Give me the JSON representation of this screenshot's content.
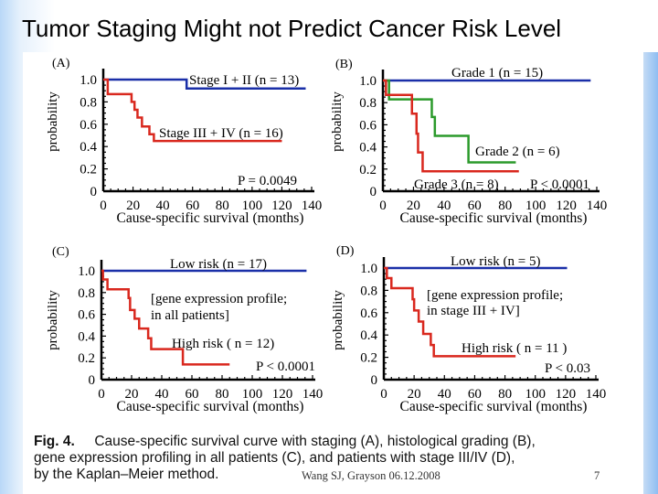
{
  "slide": {
    "title": "Tumor Staging Might not Predict Cancer Risk Level",
    "caption": {
      "label": "Fig. 4.",
      "line1": "Cause-specific survival curve with staging (A), histological grading (B),",
      "line2": "gene expression profiling in all patients (C), and patients with stage III/IV (D),",
      "line3": "by the Kaplan–Meier method."
    },
    "footer": "Wang SJ, Grayson 06.12.2008",
    "page_number": "7"
  },
  "colors": {
    "blue": "#1a2fa8",
    "red": "#d9281e",
    "green": "#2b9a2b",
    "axis": "#000000"
  },
  "chart_data": [
    {
      "type": "line",
      "step": true,
      "panel": "(A)",
      "xlabel": "Cause-specific survival (months)",
      "ylabel": "probability",
      "xlim": [
        0,
        140
      ],
      "ylim": [
        0,
        1.0
      ],
      "xticks": [
        "0",
        "20",
        "40",
        "60",
        "80",
        "100",
        "120",
        "140"
      ],
      "yticks": [
        "0",
        "0.2",
        "0.4",
        "0.6",
        "0.8",
        "1.0"
      ],
      "series": [
        {
          "name": "Stage I + II (n = 13)",
          "color": "blue",
          "x": [
            0,
            56,
            136
          ],
          "y": [
            1.0,
            0.92,
            0.92
          ]
        },
        {
          "name": "Stage III + IV (n = 16)",
          "color": "red",
          "x": [
            0,
            3,
            19,
            21,
            23,
            26,
            31,
            34,
            120
          ],
          "y": [
            1.0,
            0.87,
            0.8,
            0.73,
            0.66,
            0.58,
            0.51,
            0.45,
            0.45
          ]
        }
      ],
      "annotations": [
        "P = 0.0049"
      ]
    },
    {
      "type": "line",
      "step": true,
      "panel": "(B)",
      "xlabel": "Cause-specific survival (months)",
      "ylabel": "probability",
      "xlim": [
        0,
        140
      ],
      "ylim": [
        0,
        1.0
      ],
      "xticks": [
        "0",
        "20",
        "40",
        "60",
        "80",
        "100",
        "120",
        "140"
      ],
      "yticks": [
        "0",
        "0.2",
        "0.4",
        "0.6",
        "0.8",
        "1.0"
      ],
      "series": [
        {
          "name": "Grade 1 (n = 15)",
          "color": "blue",
          "x": [
            0,
            136
          ],
          "y": [
            1.0,
            1.0
          ]
        },
        {
          "name": "Grade 2 (n = 6)",
          "color": "green",
          "x": [
            0,
            4,
            32,
            34,
            56,
            87
          ],
          "y": [
            1.0,
            0.83,
            0.67,
            0.5,
            0.26,
            0.26
          ]
        },
        {
          "name": "Grade 3 (n = 8)",
          "color": "red",
          "x": [
            0,
            2,
            19,
            22,
            23,
            26,
            89
          ],
          "y": [
            1.0,
            0.87,
            0.7,
            0.52,
            0.35,
            0.18,
            0.18
          ]
        }
      ],
      "annotations": [
        "P < 0.0001"
      ]
    },
    {
      "type": "line",
      "step": true,
      "panel": "(C)",
      "xlabel": "Cause-specific survival (months)",
      "ylabel": "probability",
      "xlim": [
        0,
        140
      ],
      "ylim": [
        0,
        1.0
      ],
      "xticks": [
        "0",
        "20",
        "40",
        "60",
        "80",
        "100",
        "120",
        "140"
      ],
      "yticks": [
        "0",
        "0.2",
        "0.4",
        "0.6",
        "0.8",
        "1.0"
      ],
      "series": [
        {
          "name": "Low risk (n = 17)",
          "color": "blue",
          "x": [
            0,
            136
          ],
          "y": [
            1.0,
            1.0
          ]
        },
        {
          "name": "High risk ( n = 12)",
          "color": "red",
          "x": [
            0,
            1,
            4,
            18,
            19,
            22,
            25,
            31,
            33,
            54,
            85
          ],
          "y": [
            1.0,
            0.92,
            0.83,
            0.75,
            0.64,
            0.56,
            0.47,
            0.38,
            0.28,
            0.14,
            0.14
          ]
        }
      ],
      "annotations": [
        "[gene expression profile;",
        "in all patients]",
        "P < 0.0001"
      ]
    },
    {
      "type": "line",
      "step": true,
      "panel": "(D)",
      "xlabel": "Cause-specific survival (months)",
      "ylabel": "probability",
      "xlim": [
        0,
        140
      ],
      "ylim": [
        0,
        1.0
      ],
      "xticks": [
        "0",
        "20",
        "40",
        "60",
        "80",
        "100",
        "120",
        "140"
      ],
      "yticks": [
        "0",
        "0.2",
        "0.4",
        "0.6",
        "0.8",
        "1.0"
      ],
      "series": [
        {
          "name": "Low risk (n = 5)",
          "color": "blue",
          "x": [
            0,
            121
          ],
          "y": [
            1.0,
            1.0
          ]
        },
        {
          "name": "High risk ( n = 11 )",
          "color": "red",
          "x": [
            0,
            2,
            5,
            19,
            20,
            23,
            26,
            31,
            33,
            87
          ],
          "y": [
            1.0,
            0.91,
            0.82,
            0.72,
            0.62,
            0.52,
            0.41,
            0.31,
            0.21,
            0.21
          ]
        }
      ],
      "annotations": [
        "[gene expression profile;",
        "in stage III + IV]",
        "P < 0.03"
      ]
    }
  ]
}
